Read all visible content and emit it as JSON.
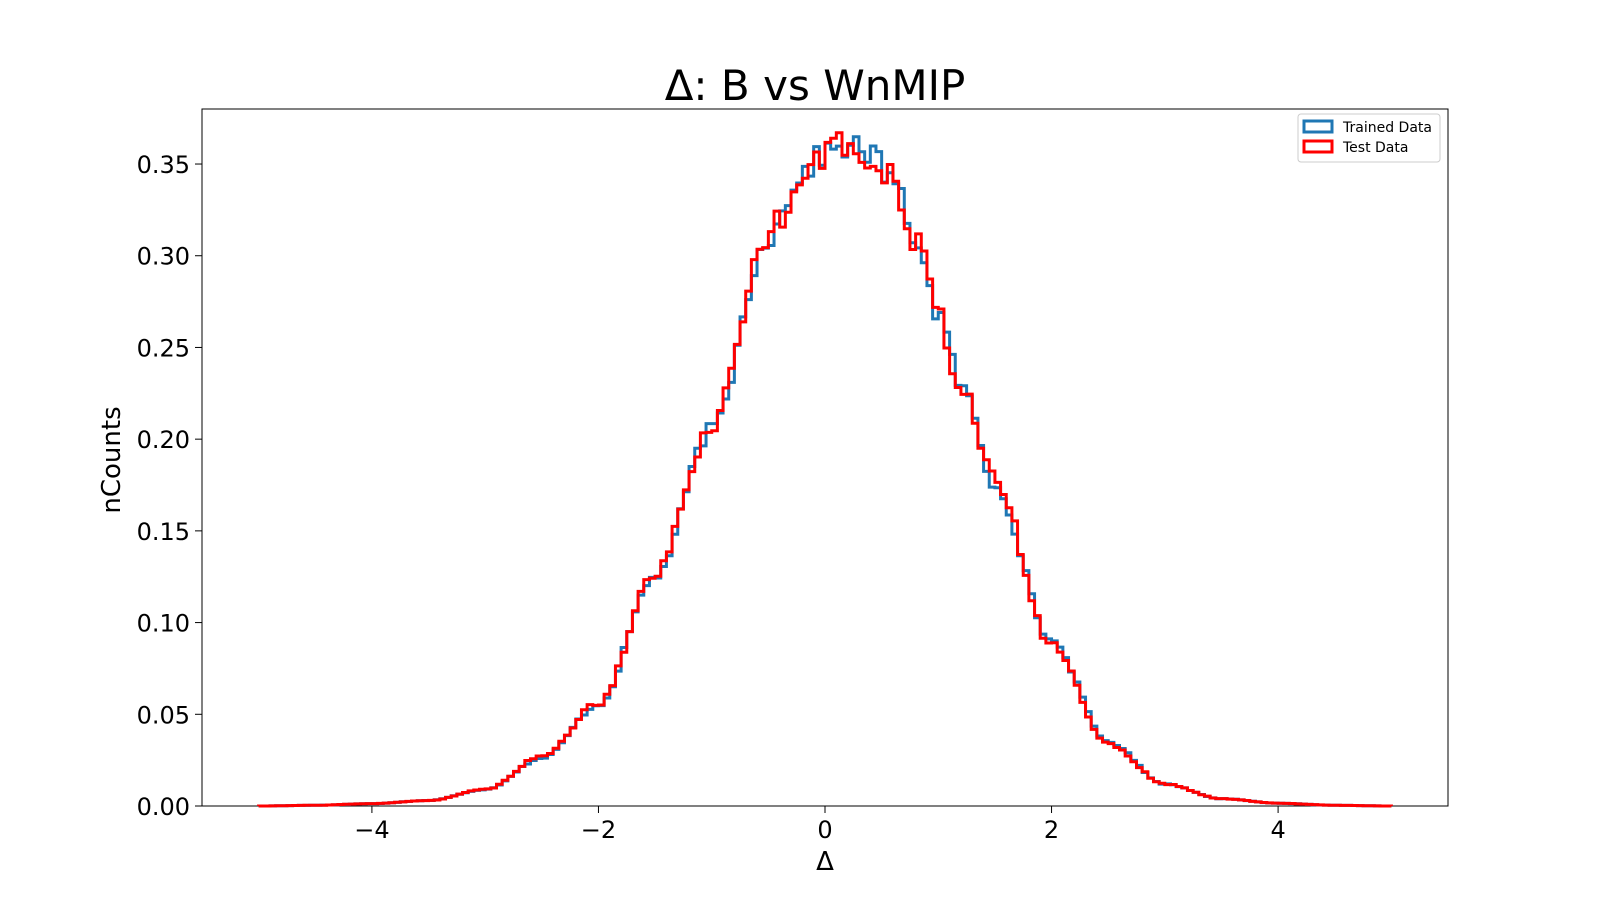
{
  "chart_data": {
    "type": "histogram",
    "title": "Δ: B vs WnMIP",
    "xlabel": "Δ",
    "ylabel": "nCounts",
    "xlim": [
      -5.5,
      5.5
    ],
    "ylim": [
      0,
      0.38
    ],
    "x_ticks": [
      -4,
      -2,
      0,
      2,
      4
    ],
    "x_tick_labels": [
      "−4",
      "−2",
      "0",
      "2",
      "4"
    ],
    "y_ticks": [
      0.0,
      0.05,
      0.1,
      0.15,
      0.2,
      0.25,
      0.3,
      0.35
    ],
    "y_tick_labels": [
      "0.00",
      "0.05",
      "0.10",
      "0.15",
      "0.20",
      "0.25",
      "0.30",
      "0.35"
    ],
    "grid": false,
    "legend_position": "top-right",
    "bins": {
      "start": -5,
      "end": 5,
      "count": 200
    },
    "series": [
      {
        "name": "Trained Data",
        "color": "#1f77b4",
        "anchors": [
          [
            -5,
            0
          ],
          [
            -4.5,
            0.0004
          ],
          [
            -4,
            0.0013
          ],
          [
            -3.5,
            0.003
          ],
          [
            -3,
            0.009
          ],
          [
            -2.5,
            0.026
          ],
          [
            -2,
            0.055
          ],
          [
            -1.5,
            0.125
          ],
          [
            -1,
            0.205
          ],
          [
            -0.5,
            0.31
          ],
          [
            -0.2,
            0.345
          ],
          [
            0,
            0.356
          ],
          [
            0.2,
            0.36
          ],
          [
            0.4,
            0.356
          ],
          [
            0.6,
            0.34
          ],
          [
            0.8,
            0.31
          ],
          [
            1,
            0.268
          ],
          [
            1.2,
            0.23
          ],
          [
            1.5,
            0.175
          ],
          [
            2,
            0.09
          ],
          [
            2.5,
            0.035
          ],
          [
            3,
            0.012
          ],
          [
            3.5,
            0.004
          ],
          [
            4,
            0.0015
          ],
          [
            4.5,
            0.0004
          ],
          [
            5,
            0
          ]
        ],
        "noise_seed": 17,
        "noise_amp": 0.02
      },
      {
        "name": "Test Data",
        "color": "#ff0000",
        "anchors": [
          [
            -5,
            0
          ],
          [
            -4.5,
            0.0004
          ],
          [
            -4,
            0.0013
          ],
          [
            -3.5,
            0.003
          ],
          [
            -3,
            0.009
          ],
          [
            -2.5,
            0.027
          ],
          [
            -2,
            0.056
          ],
          [
            -1.5,
            0.127
          ],
          [
            -1,
            0.207
          ],
          [
            -0.5,
            0.312
          ],
          [
            -0.2,
            0.345
          ],
          [
            0,
            0.357
          ],
          [
            0.2,
            0.358
          ],
          [
            0.4,
            0.352
          ],
          [
            0.6,
            0.345
          ],
          [
            0.8,
            0.31
          ],
          [
            1,
            0.268
          ],
          [
            1.2,
            0.23
          ],
          [
            1.5,
            0.177
          ],
          [
            2,
            0.088
          ],
          [
            2.5,
            0.034
          ],
          [
            3,
            0.012
          ],
          [
            3.5,
            0.004
          ],
          [
            4,
            0.0015
          ],
          [
            4.5,
            0.0004
          ],
          [
            5,
            0
          ]
        ],
        "noise_seed": 91,
        "noise_amp": 0.028
      }
    ]
  }
}
